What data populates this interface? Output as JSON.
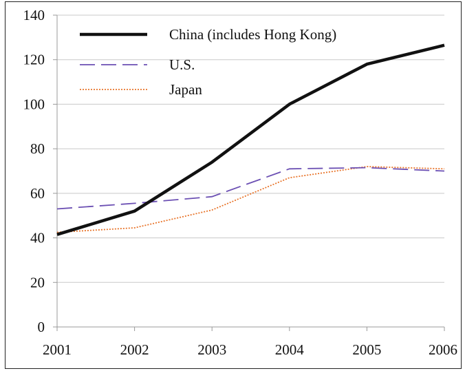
{
  "chart_data": {
    "type": "line",
    "x": [
      2001,
      2002,
      2003,
      2004,
      2005,
      2006
    ],
    "xlim": [
      2001,
      2006
    ],
    "ylim": [
      0,
      140
    ],
    "yticks": [
      0,
      20,
      40,
      60,
      80,
      100,
      120,
      140
    ],
    "xticks": [
      "2001",
      "2002",
      "2003",
      "2004",
      "2005",
      "2006"
    ],
    "grid": "horizontal",
    "legend_position": "top-left",
    "title": "",
    "xlabel": "",
    "ylabel": "",
    "series": [
      {
        "name": "China (includes Hong Kong)",
        "values": [
          41.5,
          52,
          74,
          100,
          118,
          126.5
        ],
        "color": "#111111",
        "style": "solid"
      },
      {
        "name": "U.S.",
        "values": [
          53,
          55.5,
          58.5,
          71,
          71.5,
          70
        ],
        "color": "#6b4fb3",
        "style": "dashed"
      },
      {
        "name": "Japan",
        "values": [
          42.5,
          44.5,
          52.5,
          67,
          72,
          71
        ],
        "color": "#e8742a",
        "style": "dotted"
      }
    ]
  }
}
